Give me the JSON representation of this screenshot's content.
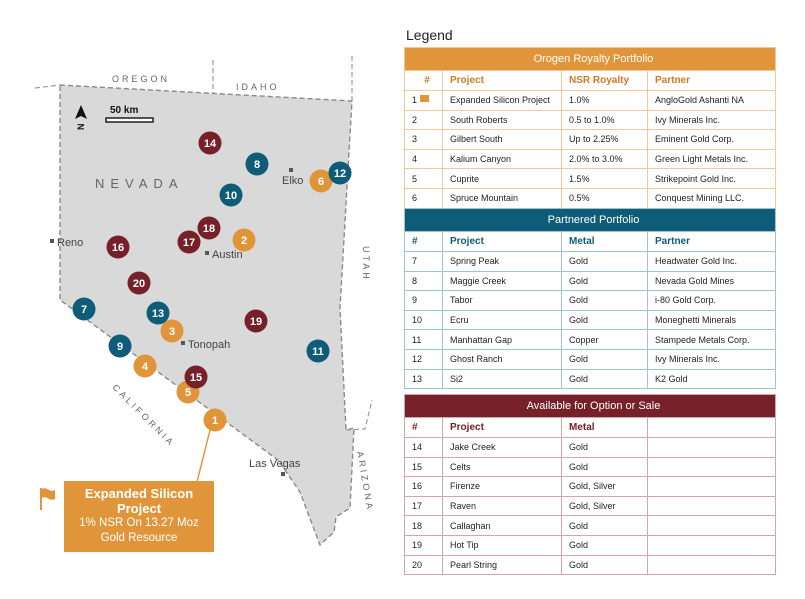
{
  "legend": {
    "title": "Legend"
  },
  "map": {
    "scale_label": "50 km",
    "state_label": "NEVADA",
    "neighbors": {
      "oregon": "OREGON",
      "idaho": "IDAHO",
      "utah": "UTAH",
      "arizona": "ARIZONA",
      "california": "CALIFORNIA"
    },
    "cities": [
      "Reno",
      "Elko",
      "Austin",
      "Tonopah",
      "Las Vegas"
    ],
    "markers": [
      {
        "n": "1",
        "group": "orogen"
      },
      {
        "n": "2",
        "group": "orogen"
      },
      {
        "n": "3",
        "group": "orogen"
      },
      {
        "n": "4",
        "group": "orogen"
      },
      {
        "n": "5",
        "group": "orogen"
      },
      {
        "n": "6",
        "group": "orogen"
      },
      {
        "n": "7",
        "group": "partnered"
      },
      {
        "n": "8",
        "group": "partnered"
      },
      {
        "n": "9",
        "group": "partnered"
      },
      {
        "n": "10",
        "group": "partnered"
      },
      {
        "n": "11",
        "group": "partnered"
      },
      {
        "n": "12",
        "group": "partnered"
      },
      {
        "n": "13",
        "group": "partnered"
      },
      {
        "n": "14",
        "group": "available"
      },
      {
        "n": "15",
        "group": "available"
      },
      {
        "n": "16",
        "group": "available"
      },
      {
        "n": "17",
        "group": "available"
      },
      {
        "n": "18",
        "group": "available"
      },
      {
        "n": "19",
        "group": "available"
      },
      {
        "n": "20",
        "group": "available"
      }
    ],
    "colors": {
      "orogen": "#e1953a",
      "partnered": "#0f5c79",
      "available": "#76202a",
      "land": "#d9d9d9"
    },
    "callout": {
      "title": "Expanded Silicon Project",
      "line1": "1% NSR On 13.27 Moz",
      "line2": "Gold Resource"
    }
  },
  "orogen": {
    "title": "Orogen Royalty Portfolio",
    "headers": [
      "#",
      "Project",
      "NSR Royalty",
      "Partner"
    ],
    "rows": [
      [
        "1",
        "Expanded Silicon Project",
        "1.0%",
        "AngloGold Ashanti NA"
      ],
      [
        "2",
        "South Roberts",
        "0.5 to 1.0%",
        "Ivy Minerals Inc."
      ],
      [
        "3",
        "Gilbert South",
        "Up to 2.25%",
        "Eminent Gold Corp."
      ],
      [
        "4",
        "Kalium Canyon",
        "2.0% to 3.0%",
        "Green Light Metals Inc."
      ],
      [
        "5",
        "Cuprite",
        "1.5%",
        "Strikepoint Gold Inc."
      ],
      [
        "6",
        "Spruce Mountain",
        "0.5%",
        "Conquest Mining LLC."
      ]
    ]
  },
  "partnered": {
    "title": "Partnered Portfolio",
    "headers": [
      "#",
      "Project",
      "Metal",
      "Partner"
    ],
    "rows": [
      [
        "7",
        "Spring Peak",
        "Gold",
        "Headwater Gold Inc."
      ],
      [
        "8",
        "Maggie Creek",
        "Gold",
        "Nevada Gold Mines"
      ],
      [
        "9",
        "Tabor",
        "Gold",
        "i-80 Gold Corp."
      ],
      [
        "10",
        "Ecru",
        "Gold",
        "Moneghetti Minerals"
      ],
      [
        "11",
        "Manhattan Gap",
        "Copper",
        "Stampede Metals Corp."
      ],
      [
        "12",
        "Ghost Ranch",
        "Gold",
        "Ivy Minerals Inc."
      ],
      [
        "13",
        "Si2",
        "Gold",
        "K2 Gold"
      ]
    ]
  },
  "available": {
    "title": "Available for Option or Sale",
    "headers": [
      "#",
      "Project",
      "Metal",
      ""
    ],
    "rows": [
      [
        "14",
        "Jake Creek",
        "Gold",
        ""
      ],
      [
        "15",
        "Celts",
        "Gold",
        ""
      ],
      [
        "16",
        "Firenze",
        "Gold, Silver",
        ""
      ],
      [
        "17",
        "Raven",
        "Gold, Silver",
        ""
      ],
      [
        "18",
        "Callaghan",
        "Gold",
        ""
      ],
      [
        "19",
        "Hot Tip",
        "Gold",
        ""
      ],
      [
        "20",
        "Pearl String",
        "Gold",
        ""
      ]
    ]
  }
}
